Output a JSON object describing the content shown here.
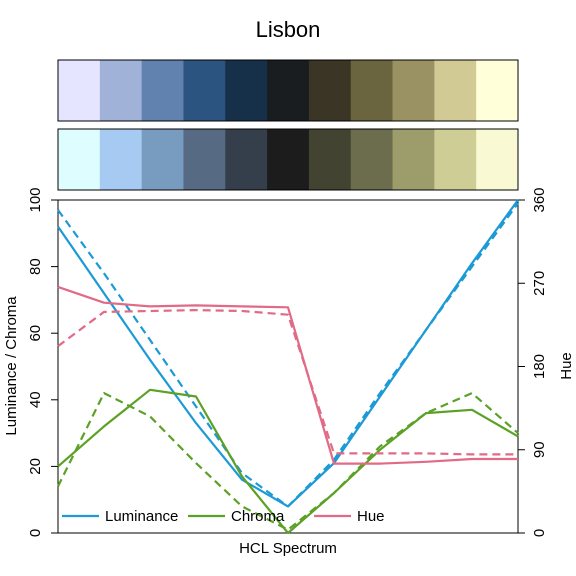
{
  "chart_data": {
    "type": "line",
    "title": "Lisbon",
    "xlabel": "HCL Spectrum",
    "ylabel_left": "Luminance / Chroma",
    "ylabel_right": "Hue",
    "ylim_left": [
      0,
      100
    ],
    "ylim_right": [
      0,
      360
    ],
    "yticks_left": [
      0,
      20,
      40,
      60,
      80,
      100
    ],
    "yticks_right": [
      0,
      90,
      180,
      270,
      360
    ],
    "grid": false,
    "legend_position": "bottom-left",
    "swatches_top": [
      "#E6E5FF",
      "#A1B2D9",
      "#6182AF",
      "#2B5580",
      "#17304A",
      "#191D20",
      "#3A3524",
      "#6A653F",
      "#9A9262",
      "#D1CA95",
      "#FFFFD9"
    ],
    "swatches_bottom": [
      "#DEFDFF",
      "#A6CAF1",
      "#789BC0",
      "#566A83",
      "#353E4B",
      "#1C1C1C",
      "#434331",
      "#6C6D4C",
      "#9C9D6A",
      "#CECD95",
      "#F9F9D4"
    ],
    "x": [
      1,
      2,
      3,
      4,
      5,
      6,
      7,
      8,
      9,
      10,
      11
    ],
    "series": [
      {
        "name": "Luminance",
        "axis": "left",
        "style": "solid",
        "color": "#1B9AD6",
        "values": [
          92,
          72,
          52,
          33,
          16,
          8,
          21,
          41,
          61,
          81,
          100
        ]
      },
      {
        "name": "Luminance",
        "axis": "left",
        "style": "dashed",
        "color": "#1B9AD6",
        "values": [
          97,
          78,
          58,
          38,
          18,
          8,
          22,
          42,
          61,
          80,
          99
        ]
      },
      {
        "name": "Chroma",
        "axis": "left",
        "style": "solid",
        "color": "#5BA125",
        "values": [
          20,
          32,
          43,
          41,
          17,
          0,
          12,
          25,
          36,
          37,
          29
        ]
      },
      {
        "name": "Chroma",
        "axis": "left",
        "style": "dashed",
        "color": "#5BA125",
        "values": [
          14,
          42,
          35,
          21,
          8,
          1,
          12,
          26,
          36,
          42,
          30
        ]
      },
      {
        "name": "Hue",
        "axis": "right",
        "style": "solid",
        "color": "#E16A86",
        "values": [
          266,
          249,
          245,
          246,
          245,
          244,
          75,
          75,
          77,
          80,
          80
        ]
      },
      {
        "name": "Hue",
        "axis": "right",
        "style": "dashed",
        "color": "#E16A86",
        "values": [
          202,
          239,
          240,
          241,
          240,
          236,
          86,
          86,
          86,
          85,
          85
        ]
      }
    ],
    "legend": [
      {
        "label": "Luminance",
        "color": "#1B9AD6"
      },
      {
        "label": "Chroma",
        "color": "#5BA125"
      },
      {
        "label": "Hue",
        "color": "#E16A86"
      }
    ]
  }
}
